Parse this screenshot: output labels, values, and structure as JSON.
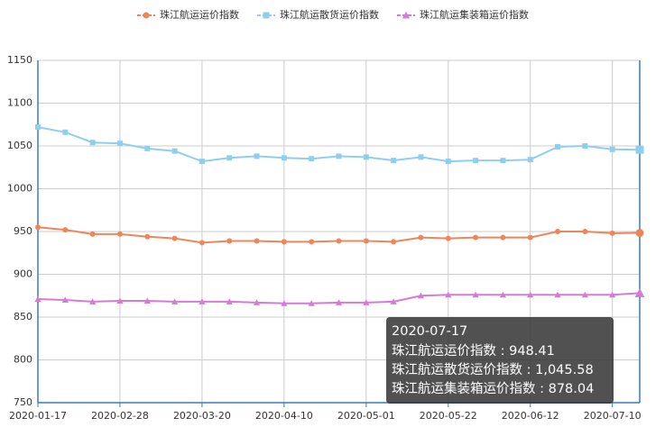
{
  "chart_data": {
    "type": "line",
    "categories": [
      "2020-01-17",
      null,
      null,
      "2020-02-28",
      null,
      null,
      "2020-03-20",
      null,
      null,
      "2020-04-10",
      null,
      null,
      "2020-05-01",
      null,
      null,
      "2020-05-22",
      null,
      null,
      "2020-06-12",
      null,
      null,
      "2020-07-10",
      "2020-07-17"
    ],
    "series": [
      {
        "name": "珠江航运运价指数",
        "color": "#f0855a",
        "marker": "circle",
        "values": [
          955,
          952,
          947,
          947,
          944,
          942,
          937,
          939,
          939,
          938,
          938,
          939,
          939,
          938,
          943,
          942,
          943,
          943,
          943,
          950,
          950,
          948,
          948.41
        ],
        "value_labels": [
          null,
          null,
          null,
          null,
          null,
          null,
          null,
          null,
          null,
          null,
          null,
          null,
          null,
          null,
          null,
          null,
          null,
          null,
          null,
          null,
          null,
          null,
          "948.41"
        ]
      },
      {
        "name": "珠江航运散货运价指数",
        "color": "#8ecff0",
        "marker": "square",
        "values": [
          1072,
          1066,
          1054,
          1053,
          1047,
          1044,
          1032,
          1036,
          1038,
          1036,
          1035,
          1038,
          1037,
          1033,
          1037,
          1032,
          1033,
          1033,
          1034,
          1049,
          1050,
          1046,
          1045.58
        ],
        "value_labels": [
          null,
          null,
          null,
          null,
          null,
          null,
          null,
          null,
          null,
          null,
          null,
          null,
          null,
          null,
          null,
          null,
          null,
          null,
          null,
          null,
          null,
          null,
          "1,045.58"
        ]
      },
      {
        "name": "珠江航运集装箱运价指数",
        "color": "#d57bd5",
        "marker": "triangle",
        "values": [
          871,
          870,
          868,
          869,
          869,
          868,
          868,
          868,
          867,
          866,
          866,
          867,
          867,
          868,
          875,
          876,
          876,
          876,
          876,
          876,
          876,
          876,
          878.04
        ],
        "value_labels": [
          null,
          null,
          null,
          null,
          null,
          null,
          null,
          null,
          null,
          null,
          null,
          null,
          null,
          null,
          null,
          null,
          null,
          null,
          null,
          null,
          null,
          null,
          "878.04"
        ]
      }
    ],
    "ylim": [
      750,
      1150
    ],
    "yticks": [
      750,
      800,
      850,
      900,
      950,
      1000,
      1050,
      1100,
      1150
    ],
    "grid": true,
    "legend": "top",
    "tooltip": {
      "index": 22,
      "separator": " : "
    }
  }
}
